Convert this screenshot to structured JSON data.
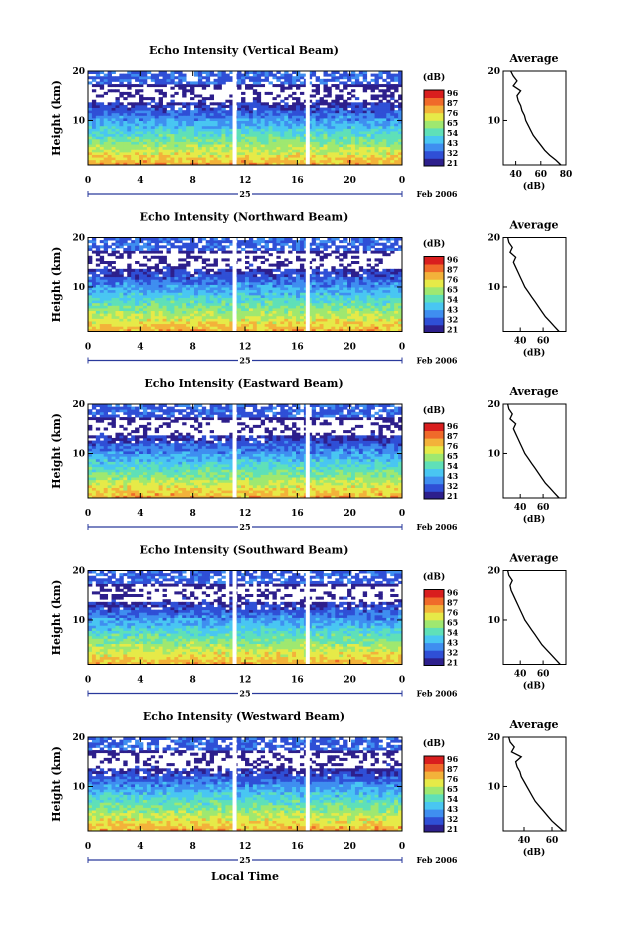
{
  "figure": {
    "xlabel": "Local Time",
    "date_label": "Feb 2006",
    "day_label": "25",
    "x_ticks": [
      "0",
      "4",
      "8",
      "12",
      "16",
      "20",
      "0"
    ],
    "y_ticks": [
      "20",
      "10"
    ],
    "colorbar_unit": "(dB)",
    "colorbar_colors": [
      "#2d1f8c",
      "#2f4fd6",
      "#3f8ef0",
      "#49c6f2",
      "#5fe0b8",
      "#9fe870",
      "#e6ea48",
      "#f3b23a",
      "#f06a2a",
      "#d91e1e"
    ],
    "average_title": "Average",
    "average_xlabel": "(dB)"
  },
  "chart_data": [
    {
      "type": "heatmap",
      "title": "Echo Intensity (Vertical Beam)",
      "ylabel": "Height (km)",
      "xlim": [
        0,
        24
      ],
      "ylim": [
        1,
        20
      ],
      "colorbar_ticks": [
        "96",
        "87",
        "76",
        "65",
        "54",
        "43",
        "32",
        "21"
      ],
      "gaps_hours": [
        11.2,
        16.8
      ],
      "profile": {
        "title": "Average",
        "xlabel": "(dB)",
        "xticks": [
          "40",
          "60",
          "80"
        ],
        "xlim": [
          30,
          80
        ],
        "heights": [
          1,
          2,
          3,
          4,
          5,
          6,
          7,
          8,
          9,
          10,
          11,
          12,
          13,
          14,
          15,
          16,
          17,
          18,
          19,
          20
        ],
        "values": [
          76,
          72,
          67,
          63,
          60,
          57,
          54,
          52,
          50,
          48,
          47,
          45,
          44,
          42,
          41,
          44,
          38,
          41,
          38,
          36
        ]
      }
    },
    {
      "type": "heatmap",
      "title": "Echo Intensity (Northward Beam)",
      "ylabel": "Height (km)",
      "xlim": [
        0,
        24
      ],
      "ylim": [
        1,
        20
      ],
      "colorbar_ticks": [
        "96",
        "87",
        "76",
        "65",
        "54",
        "43",
        "32",
        "21"
      ],
      "gaps_hours": [
        11.2,
        16.8
      ],
      "profile": {
        "title": "Average",
        "xlabel": "(dB)",
        "xticks": [
          "40",
          "60"
        ],
        "xlim": [
          25,
          80
        ],
        "heights": [
          1,
          2,
          3,
          4,
          5,
          6,
          7,
          8,
          9,
          10,
          11,
          12,
          13,
          14,
          15,
          16,
          17,
          18,
          19,
          20
        ],
        "values": [
          74,
          70,
          66,
          62,
          59,
          56,
          53,
          50,
          47,
          44,
          42,
          40,
          38,
          36,
          34,
          36,
          31,
          33,
          30,
          29
        ]
      }
    },
    {
      "type": "heatmap",
      "title": "Echo Intensity (Eastward Beam)",
      "ylabel": "Height (km)",
      "xlim": [
        0,
        24
      ],
      "ylim": [
        1,
        20
      ],
      "colorbar_ticks": [
        "96",
        "87",
        "76",
        "65",
        "54",
        "43",
        "32",
        "21"
      ],
      "gaps_hours": [
        11.2,
        16.8
      ],
      "profile": {
        "title": "Average",
        "xlabel": "(dB)",
        "xticks": [
          "40",
          "60"
        ],
        "xlim": [
          25,
          80
        ],
        "heights": [
          1,
          2,
          3,
          4,
          5,
          6,
          7,
          8,
          9,
          10,
          11,
          12,
          13,
          14,
          15,
          16,
          17,
          18,
          19,
          20
        ],
        "values": [
          74,
          70,
          66,
          62,
          59,
          56,
          53,
          50,
          47,
          44,
          42,
          40,
          38,
          36,
          34,
          36,
          31,
          33,
          30,
          29
        ]
      }
    },
    {
      "type": "heatmap",
      "title": "Echo Intensity (Southward Beam)",
      "ylabel": "Height (km)",
      "xlim": [
        0,
        24
      ],
      "ylim": [
        1,
        20
      ],
      "colorbar_ticks": [
        "96",
        "87",
        "76",
        "65",
        "54",
        "43",
        "32",
        "21"
      ],
      "gaps_hours": [
        11.2,
        16.8
      ],
      "profile": {
        "title": "Average",
        "xlabel": "(dB)",
        "xticks": [
          "40",
          "60"
        ],
        "xlim": [
          25,
          80
        ],
        "heights": [
          1,
          2,
          3,
          4,
          5,
          6,
          7,
          8,
          9,
          10,
          11,
          12,
          13,
          14,
          15,
          16,
          17,
          18,
          19,
          20
        ],
        "values": [
          75,
          71,
          67,
          63,
          59,
          56,
          53,
          50,
          47,
          44,
          42,
          40,
          38,
          36,
          34,
          32,
          31,
          33,
          30,
          29
        ]
      }
    },
    {
      "type": "heatmap",
      "title": "Echo Intensity (Westward Beam)",
      "ylabel": "Height (km)",
      "xlim": [
        0,
        24
      ],
      "ylim": [
        1,
        20
      ],
      "colorbar_ticks": [
        "96",
        "87",
        "76",
        "65",
        "54",
        "43",
        "32",
        "21"
      ],
      "gaps_hours": [
        11.2,
        16.8
      ],
      "profile": {
        "title": "Average",
        "xlabel": "(dB)",
        "xticks": [
          "40",
          "60"
        ],
        "xlim": [
          25,
          70
        ],
        "heights": [
          1,
          2,
          3,
          4,
          5,
          6,
          7,
          8,
          9,
          10,
          11,
          12,
          13,
          14,
          15,
          16,
          17,
          18,
          19,
          20
        ],
        "values": [
          68,
          64,
          60,
          57,
          54,
          51,
          48,
          46,
          44,
          42,
          40,
          38,
          37,
          35,
          34,
          38,
          31,
          33,
          30,
          29
        ]
      }
    }
  ]
}
